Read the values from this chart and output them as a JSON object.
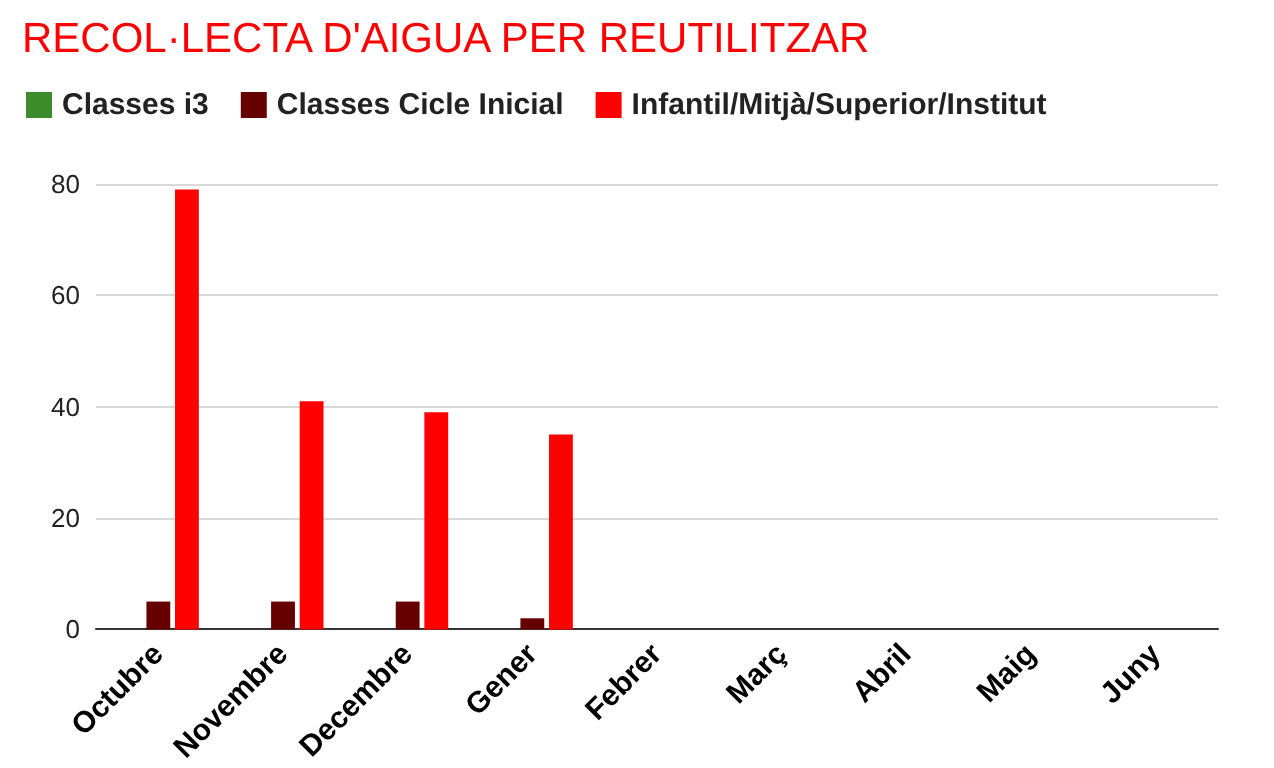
{
  "chart_data": {
    "type": "bar",
    "title": "RECOL·LECTA D'AIGUA PER REUTILITZAR",
    "categories": [
      "Octubre",
      "Novembre",
      "Decembre",
      "Gener",
      "Febrer",
      "Març",
      "Abril",
      "Maig",
      "Juny"
    ],
    "series": [
      {
        "name": "Classes i3",
        "color": "#3c8c2c",
        "values": [
          0,
          0,
          0,
          0,
          0,
          0,
          0,
          0,
          0
        ]
      },
      {
        "name": "Classes Cicle Inicial",
        "color": "#660000",
        "values": [
          5,
          5,
          5,
          2,
          0,
          0,
          0,
          0,
          0
        ]
      },
      {
        "name": "Infantil/Mitjà/Superior/Institut",
        "color": "#ff0000",
        "values": [
          79,
          41,
          39,
          35,
          0,
          0,
          0,
          0,
          0
        ]
      }
    ],
    "ylim": [
      0,
      80
    ],
    "yticks": [
      0,
      20,
      40,
      60,
      80
    ],
    "grid": "y",
    "legend": "top left"
  }
}
